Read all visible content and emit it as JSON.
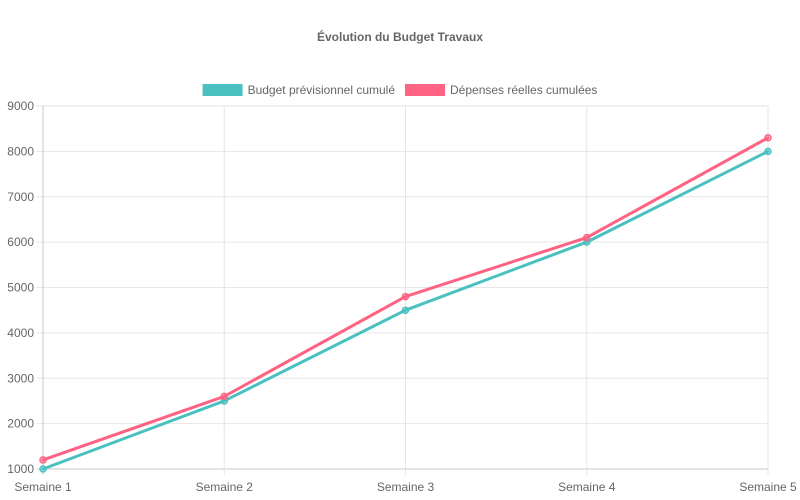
{
  "chart_data": {
    "type": "line",
    "title": "Évolution du Budget Travaux",
    "categories": [
      "Semaine 1",
      "Semaine 2",
      "Semaine 3",
      "Semaine 4",
      "Semaine 5"
    ],
    "series": [
      {
        "name": "Budget prévisionnel cumulé",
        "color": "#4bc0c0",
        "values": [
          1000,
          2500,
          4500,
          6000,
          8000
        ]
      },
      {
        "name": "Dépenses réelles cumulées",
        "color": "#ff6384",
        "values": [
          1200,
          2600,
          4800,
          6100,
          8300
        ]
      }
    ],
    "ylim": [
      1000,
      9000
    ],
    "yticks": [
      1000,
      2000,
      3000,
      4000,
      5000,
      6000,
      7000,
      8000,
      9000
    ],
    "grid": true,
    "legend": "top-center",
    "xlabel": "",
    "ylabel": ""
  }
}
